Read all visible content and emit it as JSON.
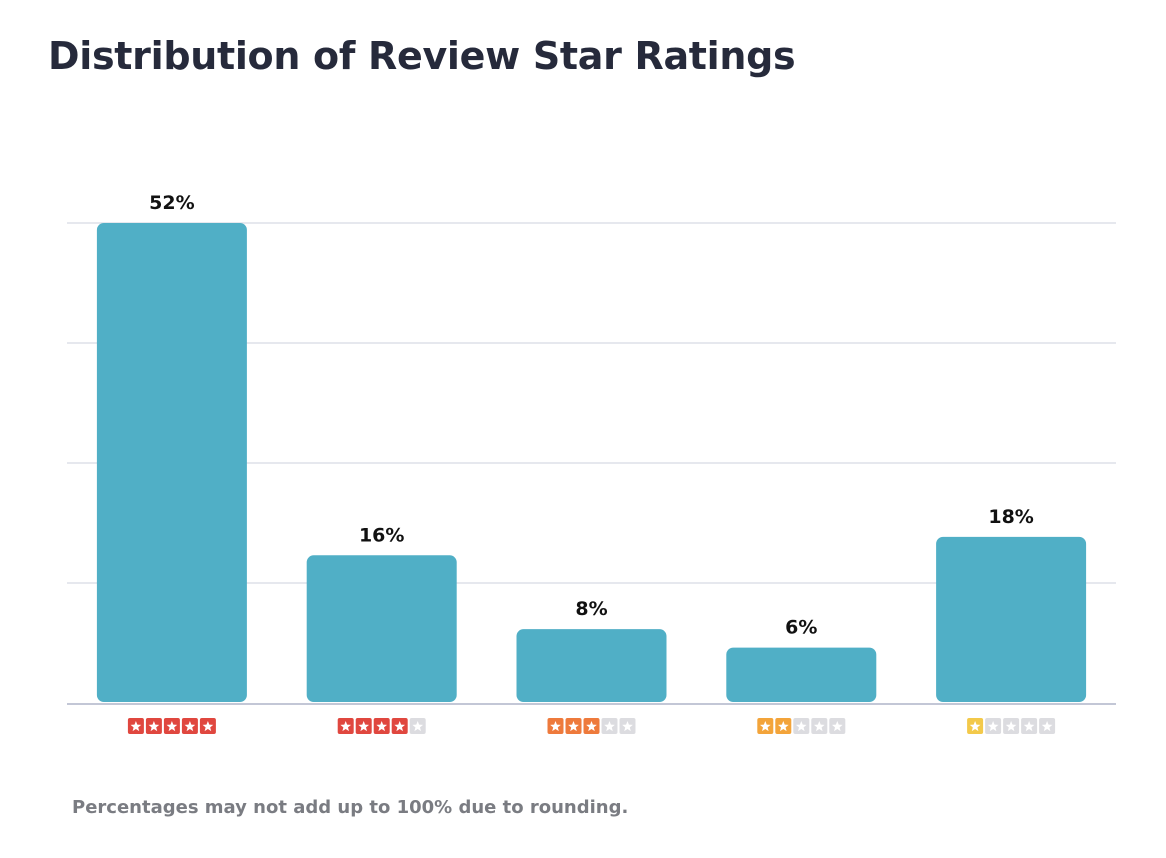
{
  "title": "Distribution of Review Star Ratings",
  "footnote": "Percentages may not add up to 100% due to rounding.",
  "colors": {
    "bar": "#50afc6",
    "grid": "#dde0e8",
    "axis": "#c3c7d6",
    "star_empty": "#dcdce0"
  },
  "chart_data": {
    "type": "bar",
    "categories": [
      "5 stars",
      "4 stars",
      "3 stars",
      "2 stars",
      "1 star"
    ],
    "values": [
      52,
      16,
      8,
      6,
      18
    ],
    "value_labels": [
      "52%",
      "16%",
      "8%",
      "6%",
      "18%"
    ],
    "stars_filled": [
      5,
      4,
      3,
      2,
      1
    ],
    "star_colors": [
      "#e0473f",
      "#e0473f",
      "#ee7a3c",
      "#f3a43a",
      "#f3c94a"
    ],
    "ylim": [
      0,
      52
    ],
    "grid": true,
    "xlabel": "",
    "ylabel": ""
  }
}
